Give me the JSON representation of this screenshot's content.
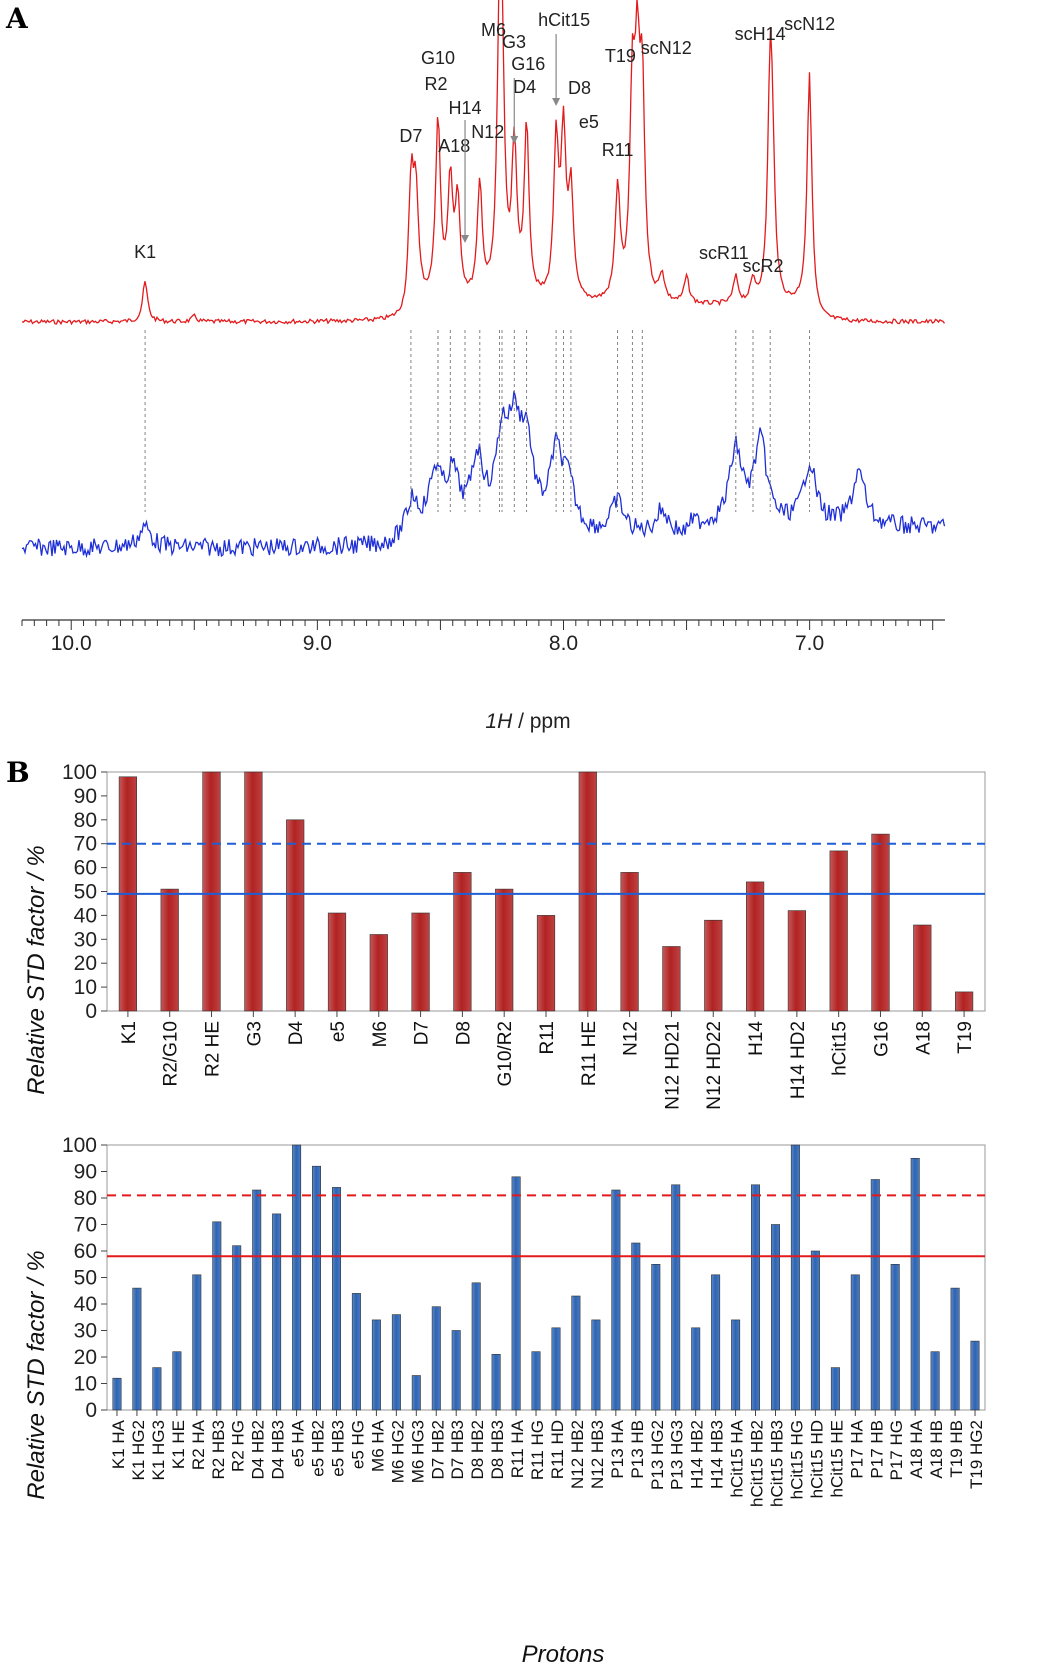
{
  "panels": {
    "a": "A",
    "b": "B"
  },
  "chart_data": [
    {
      "type": "line",
      "panel": "A",
      "xlabel_italic": "1H",
      "xlabel_rest": " / ppm",
      "x_reversed": true,
      "xlim": [
        10.2,
        6.45
      ],
      "x_ticks": [
        "10.0",
        "9.0",
        "8.0",
        "7.0"
      ],
      "series": [
        {
          "color": "#e31a1c",
          "peaks": [
            [
              9.7,
              0.15
            ],
            [
              9.5,
              0.02
            ],
            [
              8.62,
              0.46
            ],
            [
              8.6,
              0.4
            ],
            [
              8.51,
              0.68
            ],
            [
              8.46,
              0.44
            ],
            [
              8.43,
              0.36
            ],
            [
              8.34,
              0.43
            ],
            [
              8.26,
              0.86
            ],
            [
              8.25,
              0.72
            ],
            [
              8.2,
              0.56
            ],
            [
              8.15,
              0.64
            ],
            [
              8.03,
              0.58
            ],
            [
              8.0,
              0.6
            ],
            [
              7.97,
              0.4
            ],
            [
              7.78,
              0.42
            ],
            [
              7.72,
              0.74
            ],
            [
              7.7,
              0.75
            ],
            [
              7.68,
              0.74
            ],
            [
              7.6,
              0.1
            ],
            [
              7.5,
              0.1
            ],
            [
              7.3,
              0.1
            ],
            [
              7.23,
              0.08
            ],
            [
              7.16,
              0.85
            ],
            [
              7.15,
              0.3
            ],
            [
              7.0,
              0.88
            ]
          ]
        },
        {
          "color": "#1f2fd6",
          "peaks": [
            [
              9.7,
              0.1
            ],
            [
              8.62,
              0.18
            ],
            [
              8.52,
              0.28
            ],
            [
              8.45,
              0.26
            ],
            [
              8.35,
              0.34
            ],
            [
              8.25,
              0.4
            ],
            [
              8.2,
              0.42
            ],
            [
              8.15,
              0.4
            ],
            [
              8.03,
              0.36
            ],
            [
              7.98,
              0.2
            ],
            [
              7.78,
              0.16
            ],
            [
              7.6,
              0.12
            ],
            [
              7.3,
              0.36
            ],
            [
              7.2,
              0.4
            ],
            [
              7.0,
              0.3
            ],
            [
              6.8,
              0.26
            ]
          ]
        }
      ],
      "peak_labels": [
        {
          "label": "K1",
          "ppm": 9.7
        },
        {
          "label": "D7",
          "ppm": 8.62
        },
        {
          "label": "G10",
          "ppm": 8.51
        },
        {
          "label": "R2",
          "ppm": 8.51
        },
        {
          "label": "A18",
          "ppm": 8.46
        },
        {
          "label": "H14",
          "ppm": 8.4
        },
        {
          "label": "N12",
          "ppm": 8.34
        },
        {
          "label": "M6",
          "ppm": 8.26
        },
        {
          "label": "G3",
          "ppm": 8.25
        },
        {
          "label": "G16",
          "ppm": 8.2
        },
        {
          "label": "D4",
          "ppm": 8.15
        },
        {
          "label": "hCit15",
          "ppm": 8.03
        },
        {
          "label": "D8",
          "ppm": 8.0
        },
        {
          "label": "e5",
          "ppm": 7.97
        },
        {
          "label": "R11",
          "ppm": 7.78
        },
        {
          "label": "T19",
          "ppm": 7.72
        },
        {
          "label": "scN12",
          "ppm": 7.68
        },
        {
          "label": "scR11",
          "ppm": 7.3
        },
        {
          "label": "scR2",
          "ppm": 7.23
        },
        {
          "label": "scH14",
          "ppm": 7.16
        },
        {
          "label": "scN12",
          "ppm": 7.0
        }
      ]
    },
    {
      "type": "bar",
      "panel": "B-top",
      "ylabel": "Relative STD factor / %",
      "ylim": [
        0,
        100
      ],
      "y_ticks": [
        0,
        10,
        20,
        30,
        40,
        50,
        60,
        70,
        80,
        90,
        100
      ],
      "bar_color": "#b22222",
      "categories": [
        "K1",
        "R2/G10",
        "R2 HE",
        "G3",
        "D4",
        "e5",
        "M6",
        "D7",
        "D8",
        "G10/R2",
        "R11",
        "R11 HE",
        "N12",
        "N12 HD21",
        "N12 HD22",
        "H14",
        "H14 HD2",
        "hCit15",
        "G16",
        "A18",
        "T19"
      ],
      "values": [
        98,
        51,
        100,
        100,
        80,
        41,
        32,
        41,
        58,
        51,
        40,
        100,
        58,
        27,
        38,
        54,
        42,
        67,
        74,
        36,
        8
      ],
      "lines": [
        {
          "y": 49,
          "color": "#1f5fd6",
          "style": "solid"
        },
        {
          "y": 70,
          "color": "#1f5fd6",
          "style": "dashed"
        }
      ]
    },
    {
      "type": "bar",
      "panel": "B-bottom",
      "ylabel": "Relative STD factor / %",
      "xlabel": "Protons",
      "ylim": [
        0,
        100
      ],
      "y_ticks": [
        0,
        10,
        20,
        30,
        40,
        50,
        60,
        70,
        80,
        90,
        100
      ],
      "bar_color": "#2c64b4",
      "categories": [
        "K1 HA",
        "K1 HG2",
        "K1 HG3",
        "K1 HE",
        "R2 HA",
        "R2 HB3",
        "R2 HG",
        "D4 HB2",
        "D4 HB3",
        "e5 HA",
        "e5 HB2",
        "e5 HB3",
        "e5 HG",
        "M6 HA",
        "M6 HG2",
        "M6 HG3",
        "D7 HB2",
        "D7 HB3",
        "D8 HB2",
        "D8 HB3",
        "R11 HA",
        "R11 HG",
        "R11 HD",
        "N12 HB2",
        "N12 HB3",
        "P13 HA",
        "P13 HB",
        "P13 HG2",
        "P13 HG3",
        "H14 HB2",
        "H14 HB3",
        "hCit15 HA",
        "hCit15 HB2",
        "hCit15 HB3",
        "hCit15 HG",
        "hCit15 HD",
        "hCit15 HE",
        "P17 HA",
        "P17 HB",
        "P17 HG",
        "A18 HA",
        "A18 HB",
        "T19 HB",
        "T19 HG2"
      ],
      "values": [
        12,
        46,
        16,
        22,
        51,
        71,
        62,
        83,
        74,
        100,
        92,
        84,
        44,
        34,
        36,
        13,
        39,
        30,
        48,
        21,
        88,
        22,
        31,
        43,
        34,
        83,
        63,
        55,
        85,
        31,
        51,
        34,
        85,
        70,
        100,
        60,
        16,
        51,
        87,
        55,
        95,
        22,
        46,
        26
      ],
      "lines": [
        {
          "y": 58,
          "color": "#e31a1c",
          "style": "solid"
        },
        {
          "y": 81,
          "color": "#e31a1c",
          "style": "dashed"
        }
      ]
    }
  ]
}
